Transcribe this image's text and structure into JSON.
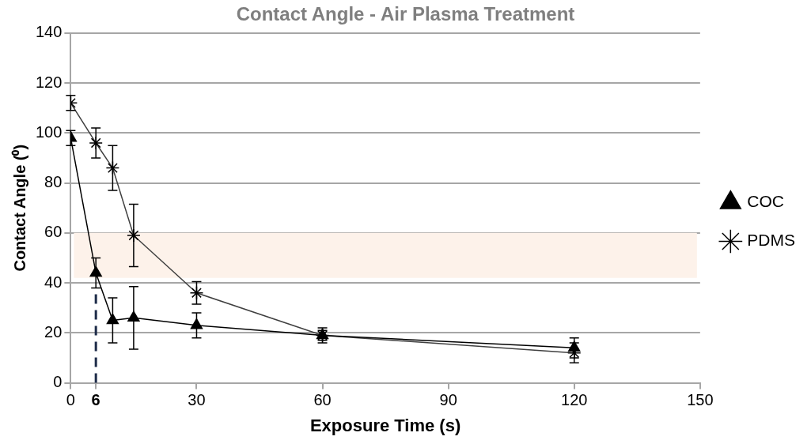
{
  "chart_data": {
    "type": "line",
    "title": "Contact Angle - Air Plasma Treatment",
    "xlabel": "Exposure Time (s)",
    "ylabel": "Contact Angle (⁰)",
    "x": [
      0,
      6,
      10,
      15,
      30,
      60,
      120
    ],
    "series": [
      {
        "name": "COC",
        "color": "#000000",
        "marker": "triangle",
        "values": [
          98,
          44,
          25,
          26,
          23,
          19,
          14
        ],
        "errors": [
          3,
          6,
          9,
          12.5,
          5,
          3,
          4
        ]
      },
      {
        "name": "PDMS",
        "color": "#404040",
        "marker": "cross",
        "values": [
          112,
          96,
          86,
          59,
          36,
          19,
          12
        ],
        "errors": [
          3,
          6,
          9,
          12.5,
          4.5,
          2,
          4
        ]
      }
    ],
    "xlim": [
      0,
      150
    ],
    "xticks": [
      0,
      {
        "value": 6,
        "label": "6"
      },
      30,
      60,
      90,
      120,
      150
    ],
    "ylim": [
      0,
      140
    ],
    "yticks": [
      0,
      20,
      40,
      60,
      80,
      100,
      120,
      140
    ],
    "bands": [
      {
        "axis": "y",
        "from": 42,
        "to": 60,
        "color": "#fdf2ea"
      }
    ],
    "ref_lines": [
      {
        "axis": "x",
        "value": 6,
        "color": "#1f2d4a",
        "line_style": "dashed"
      }
    ],
    "grid": "y",
    "legend": "right"
  }
}
